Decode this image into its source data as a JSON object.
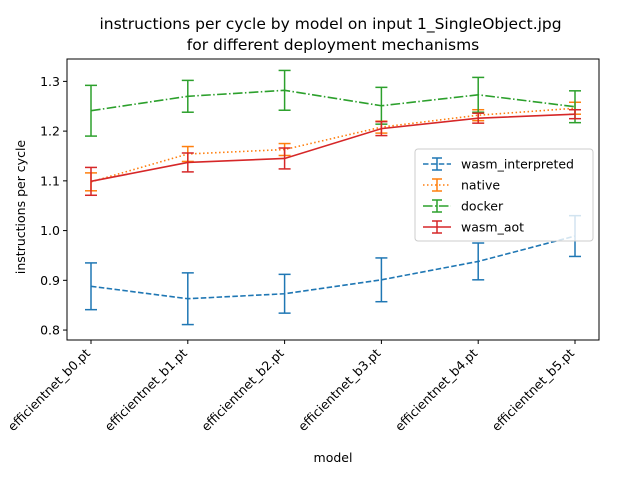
{
  "chart_data": {
    "type": "line",
    "title": "instructions per cycle by model on input 1_SingleObject.jpg\nfor different deployment mechanisms",
    "xlabel": "model",
    "ylabel": "instructions per cycle",
    "categories": [
      "efficientnet_b0.pt",
      "efficientnet_b1.pt",
      "efficientnet_b2.pt",
      "efficientnet_b3.pt",
      "efficientnet_b4.pt",
      "efficientnet_b5.pt"
    ],
    "ylim": [
      0.78,
      1.345
    ],
    "yticks": [
      0.8,
      0.9,
      1.0,
      1.1,
      1.2,
      1.3
    ],
    "ytick_labels": [
      "0.8",
      "0.9",
      "1.0",
      "1.1",
      "1.2",
      "1.3"
    ],
    "grid": false,
    "legend_position": "center-right",
    "series": [
      {
        "name": "wasm_interpreted",
        "color": "#1f77b4",
        "linestyle": "dashed",
        "values": [
          0.888,
          0.863,
          0.873,
          0.901,
          0.938,
          0.989
        ],
        "errors": [
          0.047,
          0.052,
          0.039,
          0.044,
          0.037,
          0.041
        ]
      },
      {
        "name": "native",
        "color": "#ff7f0e",
        "linestyle": "dotted",
        "values": [
          1.098,
          1.154,
          1.163,
          1.208,
          1.232,
          1.246
        ],
        "errors": [
          0.018,
          0.015,
          0.012,
          0.012,
          0.011,
          0.012
        ]
      },
      {
        "name": "docker",
        "color": "#2ca02c",
        "linestyle": "dashdot",
        "values": [
          1.241,
          1.27,
          1.282,
          1.251,
          1.273,
          1.249
        ],
        "errors": [
          0.051,
          0.032,
          0.04,
          0.037,
          0.035,
          0.032
        ]
      },
      {
        "name": "wasm_aot",
        "color": "#d62728",
        "linestyle": "solid",
        "values": [
          1.099,
          1.137,
          1.145,
          1.205,
          1.226,
          1.234
        ],
        "errors": [
          0.028,
          0.019,
          0.021,
          0.014,
          0.01,
          0.009
        ]
      }
    ]
  }
}
